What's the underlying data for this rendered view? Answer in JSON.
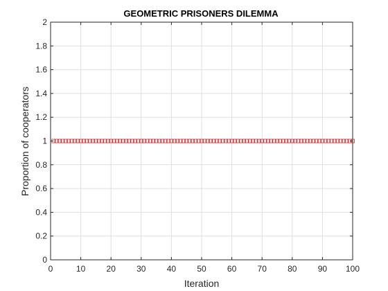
{
  "chart_data": {
    "type": "scatter",
    "title": "GEOMETRIC PRISONERS DILEMMA",
    "xlabel": "Iteration",
    "ylabel": "Proportion of cooperators",
    "xlim": [
      0,
      100
    ],
    "ylim": [
      0,
      2
    ],
    "xticks": [
      0,
      10,
      20,
      30,
      40,
      50,
      60,
      70,
      80,
      90,
      100
    ],
    "yticks": [
      0,
      0.2,
      0.4,
      0.6,
      0.8,
      1,
      1.2,
      1.4,
      1.6,
      1.8,
      2
    ],
    "xtick_labels": [
      "0",
      "10",
      "20",
      "30",
      "40",
      "50",
      "60",
      "70",
      "80",
      "90",
      "100"
    ],
    "ytick_labels": [
      "0",
      "0.2",
      "0.4",
      "0.6",
      "0.8",
      "1",
      "1.2",
      "1.4",
      "1.6",
      "1.8",
      "2"
    ],
    "grid": true,
    "marker": "square",
    "series_color": "#e41a1c",
    "series": [
      {
        "x": [
          1,
          2,
          3,
          4,
          5,
          6,
          7,
          8,
          9,
          10,
          11,
          12,
          13,
          14,
          15,
          16,
          17,
          18,
          19,
          20,
          21,
          22,
          23,
          24,
          25,
          26,
          27,
          28,
          29,
          30,
          31,
          32,
          33,
          34,
          35,
          36,
          37,
          38,
          39,
          40,
          41,
          42,
          43,
          44,
          45,
          46,
          47,
          48,
          49,
          50,
          51,
          52,
          53,
          54,
          55,
          56,
          57,
          58,
          59,
          60,
          61,
          62,
          63,
          64,
          65,
          66,
          67,
          68,
          69,
          70,
          71,
          72,
          73,
          74,
          75,
          76,
          77,
          78,
          79,
          80,
          81,
          82,
          83,
          84,
          85,
          86,
          87,
          88,
          89,
          90,
          91,
          92,
          93,
          94,
          95,
          96,
          97,
          98,
          99,
          100
        ],
        "y": [
          1,
          1,
          1,
          1,
          1,
          1,
          1,
          1,
          1,
          1,
          1,
          1,
          1,
          1,
          1,
          1,
          1,
          1,
          1,
          1,
          1,
          1,
          1,
          1,
          1,
          1,
          1,
          1,
          1,
          1,
          1,
          1,
          1,
          1,
          1,
          1,
          1,
          1,
          1,
          1,
          1,
          1,
          1,
          1,
          1,
          1,
          1,
          1,
          1,
          1,
          1,
          1,
          1,
          1,
          1,
          1,
          1,
          1,
          1,
          1,
          1,
          1,
          1,
          1,
          1,
          1,
          1,
          1,
          1,
          1,
          1,
          1,
          1,
          1,
          1,
          1,
          1,
          1,
          1,
          1,
          1,
          1,
          1,
          1,
          1,
          1,
          1,
          1,
          1,
          1,
          1,
          1,
          1,
          1,
          1,
          1,
          1,
          1,
          1,
          1
        ]
      }
    ]
  }
}
